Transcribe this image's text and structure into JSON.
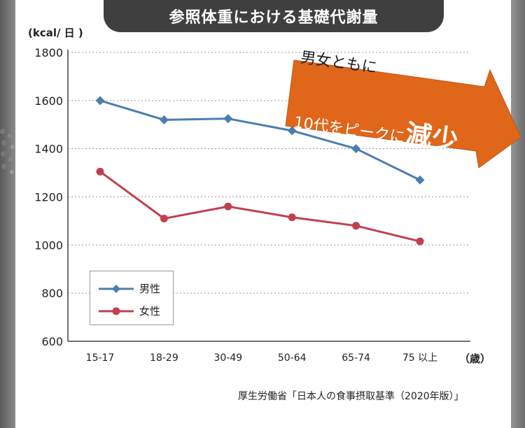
{
  "title": "参照体重における基礎代謝量",
  "y_unit_label": "(kcal/ 日 )",
  "x_unit_label": "（歳）",
  "source": "厚生労働省「日本人の食事摂取基準（2020年版）」",
  "callout": {
    "line1": "男女ともに",
    "line2_small": "10代をピークに",
    "line2_big": "減少"
  },
  "colors": {
    "male": "#4a7fb0",
    "female": "#c0404f",
    "arrow": "#e0661a",
    "title_bg": "#3f3f3f"
  },
  "chart_data": {
    "type": "line",
    "title": "参照体重における基礎代謝量",
    "xlabel": "（歳）",
    "ylabel": "(kcal/ 日 )",
    "categories": [
      "15-17",
      "18-29",
      "30-49",
      "50-64",
      "65-74",
      "75 以上"
    ],
    "ylim": [
      600,
      1800
    ],
    "yticks": [
      600,
      800,
      1000,
      1200,
      1400,
      1600,
      1800
    ],
    "grid": true,
    "legend": "bottom-left",
    "series": [
      {
        "name": "男性",
        "marker": "diamond",
        "values": [
          1600,
          1520,
          1525,
          1475,
          1400,
          1270
        ]
      },
      {
        "name": "女性",
        "marker": "circle",
        "values": [
          1305,
          1110,
          1160,
          1115,
          1080,
          1015
        ]
      }
    ]
  }
}
